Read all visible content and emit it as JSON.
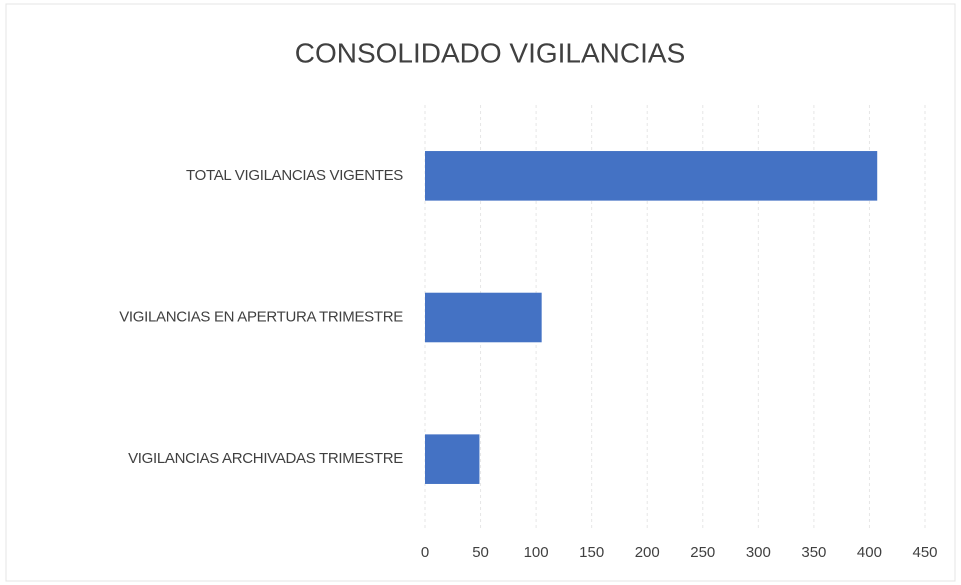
{
  "chart_data": {
    "type": "bar",
    "orientation": "horizontal",
    "title": "CONSOLIDADO VIGILANCIAS",
    "categories": [
      "TOTAL VIGILANCIAS VIGENTES",
      "VIGILANCIAS EN APERTURA TRIMESTRE",
      "VIGILANCIAS ARCHIVADAS TRIMESTRE"
    ],
    "values": [
      407,
      105,
      49
    ],
    "color": "#4472c4",
    "xlim": [
      0,
      450
    ],
    "xticks": [
      0,
      50,
      100,
      150,
      200,
      250,
      300,
      350,
      400,
      450
    ],
    "grid": true
  }
}
